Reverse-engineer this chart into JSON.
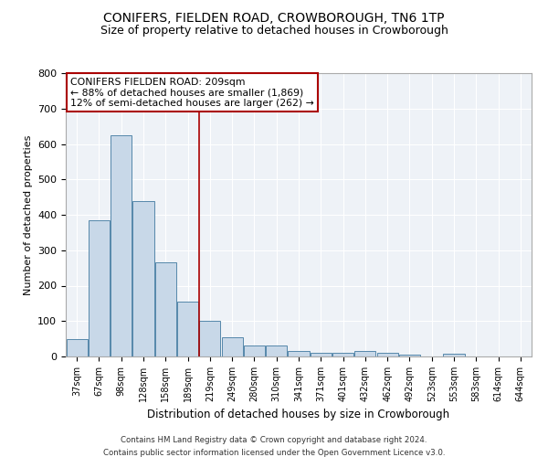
{
  "title": "CONIFERS, FIELDEN ROAD, CROWBOROUGH, TN6 1TP",
  "subtitle": "Size of property relative to detached houses in Crowborough",
  "xlabel": "Distribution of detached houses by size in Crowborough",
  "ylabel": "Number of detached properties",
  "categories": [
    "37sqm",
    "67sqm",
    "98sqm",
    "128sqm",
    "158sqm",
    "189sqm",
    "219sqm",
    "249sqm",
    "280sqm",
    "310sqm",
    "341sqm",
    "371sqm",
    "401sqm",
    "432sqm",
    "462sqm",
    "492sqm",
    "523sqm",
    "553sqm",
    "583sqm",
    "614sqm",
    "644sqm"
  ],
  "values": [
    50,
    385,
    625,
    440,
    265,
    155,
    100,
    55,
    30,
    30,
    15,
    10,
    10,
    15,
    10,
    5,
    0,
    8,
    0,
    0,
    0
  ],
  "bar_color": "#c8d8e8",
  "bar_edge_color": "#5588aa",
  "vline_position": 5.5,
  "vline_color": "#aa0000",
  "annotation_text": "CONIFERS FIELDEN ROAD: 209sqm\n← 88% of detached houses are smaller (1,869)\n12% of semi-detached houses are larger (262) →",
  "annotation_box_color": "#ffffff",
  "annotation_box_edge_color": "#aa0000",
  "ylim": [
    0,
    800
  ],
  "yticks": [
    0,
    100,
    200,
    300,
    400,
    500,
    600,
    700,
    800
  ],
  "footer_line1": "Contains HM Land Registry data © Crown copyright and database right 2024.",
  "footer_line2": "Contains public sector information licensed under the Open Government Licence v3.0.",
  "title_fontsize": 10,
  "subtitle_fontsize": 9,
  "background_color": "#ffffff",
  "plot_bg_color": "#eef2f7"
}
